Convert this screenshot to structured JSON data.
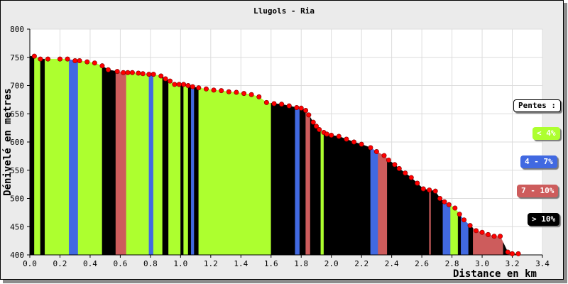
{
  "chart_data": {
    "type": "area",
    "title": "Llugols - Ria",
    "xlabel": "Distance en km",
    "ylabel": "Dénivelé en metres",
    "xlim": [
      0,
      3.4
    ],
    "ylim": [
      400,
      800
    ],
    "x_ticks": [
      "0.0",
      "0.2",
      "0.4",
      "0.6",
      "0.8",
      "1.0",
      "1.2",
      "1.4",
      "1.6",
      "1.8",
      "2.0",
      "2.2",
      "2.4",
      "2.6",
      "2.8",
      "3.0",
      "3.2",
      "3.4"
    ],
    "y_ticks": [
      "400",
      "450",
      "500",
      "550",
      "600",
      "650",
      "700",
      "750",
      "800"
    ],
    "grid": true,
    "profile": {
      "x": [
        0.03,
        0.07,
        0.12,
        0.2,
        0.25,
        0.3,
        0.33,
        0.38,
        0.43,
        0.48,
        0.52,
        0.58,
        0.62,
        0.65,
        0.68,
        0.72,
        0.75,
        0.79,
        0.82,
        0.87,
        0.9,
        0.93,
        0.96,
        0.99,
        1.02,
        1.05,
        1.08,
        1.12,
        1.17,
        1.22,
        1.27,
        1.32,
        1.37,
        1.42,
        1.47,
        1.52,
        1.57,
        1.62,
        1.67,
        1.72,
        1.77,
        1.8,
        1.83,
        1.85,
        1.88,
        1.9,
        1.92,
        1.95,
        1.97,
        2.0,
        2.05,
        2.1,
        2.15,
        2.2,
        2.26,
        2.3,
        2.35,
        2.38,
        2.42,
        2.45,
        2.49,
        2.53,
        2.57,
        2.61,
        2.65,
        2.69,
        2.72,
        2.75,
        2.78,
        2.82,
        2.85,
        2.88,
        2.92,
        2.96,
        3.0,
        3.04,
        3.08,
        3.12,
        3.17,
        3.2,
        3.24
      ],
      "y": [
        752,
        747,
        747,
        747,
        747,
        744,
        744,
        742,
        740,
        735,
        728,
        725,
        723,
        723,
        723,
        722,
        721,
        720,
        720,
        717,
        712,
        708,
        702,
        702,
        702,
        700,
        698,
        696,
        694,
        692,
        691,
        689,
        688,
        686,
        684,
        680,
        670,
        668,
        667,
        664,
        661,
        660,
        656,
        648,
        635,
        628,
        622,
        617,
        614,
        612,
        610,
        605,
        600,
        596,
        590,
        583,
        576,
        568,
        560,
        553,
        545,
        537,
        527,
        517,
        515,
        513,
        500,
        494,
        489,
        483,
        472,
        462,
        452,
        443,
        440,
        436,
        433,
        433,
        405,
        402,
        402
      ]
    },
    "pente_segments": {
      "x_start": [
        0.0,
        0.03,
        0.07,
        0.1,
        0.26,
        0.32,
        0.48,
        0.57,
        0.64,
        0.79,
        0.82,
        0.88,
        0.92,
        1.0,
        1.02,
        1.05,
        1.07,
        1.09,
        1.12,
        1.6,
        1.76,
        1.79,
        1.83,
        1.86,
        1.93,
        1.95,
        2.26,
        2.31,
        2.37,
        2.65,
        2.66,
        2.74,
        2.79,
        2.84,
        2.86,
        2.91,
        2.94,
        3.14,
        3.17,
        3.19,
        3.22
      ],
      "x_end": [
        0.03,
        0.07,
        0.1,
        0.26,
        0.32,
        0.48,
        0.57,
        0.64,
        0.79,
        0.82,
        0.88,
        0.92,
        1.0,
        1.02,
        1.05,
        1.07,
        1.09,
        1.12,
        1.6,
        1.76,
        1.79,
        1.83,
        1.86,
        1.93,
        1.95,
        2.26,
        2.31,
        2.37,
        2.65,
        2.66,
        2.74,
        2.79,
        2.84,
        2.86,
        2.91,
        2.94,
        3.14,
        3.17,
        3.19,
        3.22,
        3.24
      ],
      "class": [
        "> 10%",
        "< 4%",
        "> 10%",
        "< 4%",
        "4 - 7%",
        "< 4%",
        "> 10%",
        "7 - 10%",
        "< 4%",
        "4 - 7%",
        "< 4%",
        "> 10%",
        "< 4%",
        "> 10%",
        "< 4%",
        "> 10%",
        "4 - 7%",
        "> 10%",
        "< 4%",
        "> 10%",
        "4 - 7%",
        "> 10%",
        "7 - 10%",
        "> 10%",
        "< 4%",
        "> 10%",
        "4 - 7%",
        "7 - 10%",
        "> 10%",
        "7 - 10%",
        "> 10%",
        "4 - 7%",
        "< 4%",
        "> 10%",
        "4 - 7%",
        "> 10%",
        "7 - 10%",
        "> 10%",
        "7 - 10%",
        "< 4%",
        "> 10%"
      ]
    },
    "legend": {
      "title": "Pentes :",
      "placement": "right",
      "items": [
        {
          "label": "< 4%",
          "color": "#adff2f"
        },
        {
          "label": "4 - 7%",
          "color": "#4169e1"
        },
        {
          "label": "7 - 10%",
          "color": "#cd5c5c"
        },
        {
          "label": "> 10%",
          "color": "#000000"
        }
      ]
    },
    "colors": {
      "point": "#ff0000",
      "plot_background": "#ffffff",
      "frame_background": "#ebebeb",
      "grid": "#dcdcdc"
    }
  }
}
